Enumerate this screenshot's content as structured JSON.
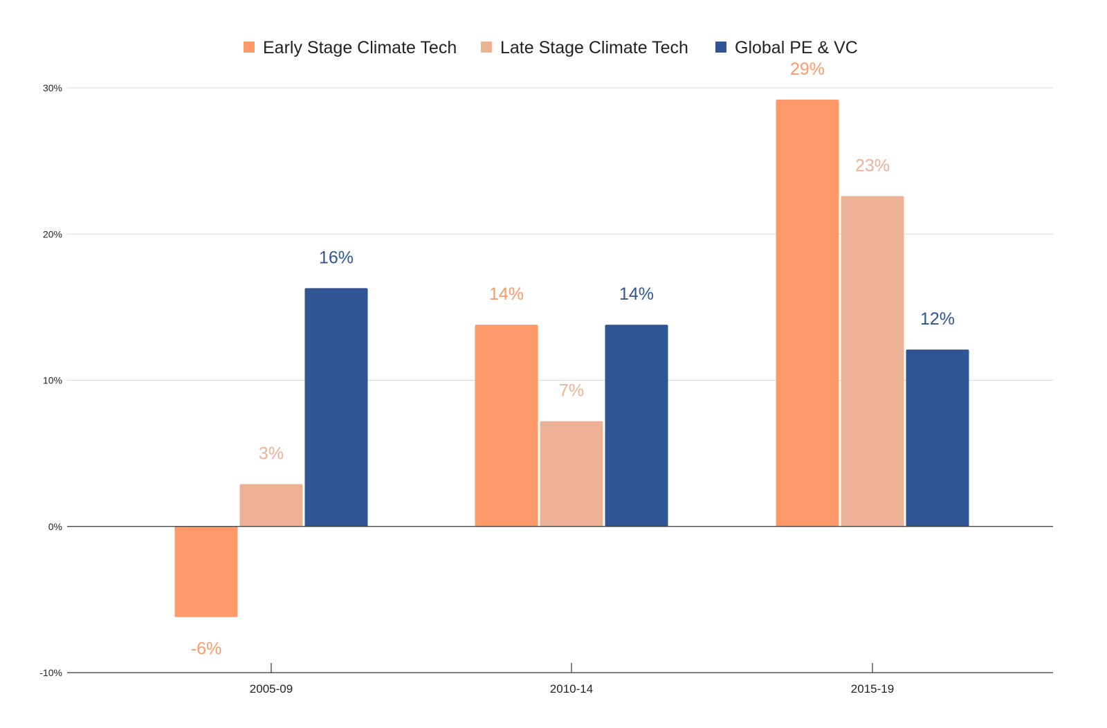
{
  "chart_data": {
    "type": "bar",
    "title": "",
    "xlabel": "",
    "ylabel": "",
    "categories": [
      "2005-09",
      "2010-14",
      "2015-19"
    ],
    "series": [
      {
        "name": "Early Stage Climate Tech",
        "color": "#fe9a6a",
        "values": [
          -6.2,
          13.8,
          29.2
        ],
        "labels": [
          "-6%",
          "14%",
          "29%"
        ]
      },
      {
        "name": "Late Stage Climate Tech",
        "color": "#edb195",
        "values": [
          2.9,
          7.2,
          22.6
        ],
        "labels": [
          "3%",
          "7%",
          "23%"
        ]
      },
      {
        "name": "Global PE & VC",
        "color": "#305594",
        "values": [
          16.3,
          13.8,
          12.1
        ],
        "labels": [
          "16%",
          "14%",
          "12%"
        ]
      }
    ],
    "ylim": [
      -10,
      30
    ],
    "yticks": [
      -10,
      0,
      10,
      20,
      30
    ],
    "ytick_labels": [
      "-10%",
      "0%",
      "10%",
      "20%",
      "30%"
    ],
    "legend_position": "top-center",
    "grid": true
  }
}
